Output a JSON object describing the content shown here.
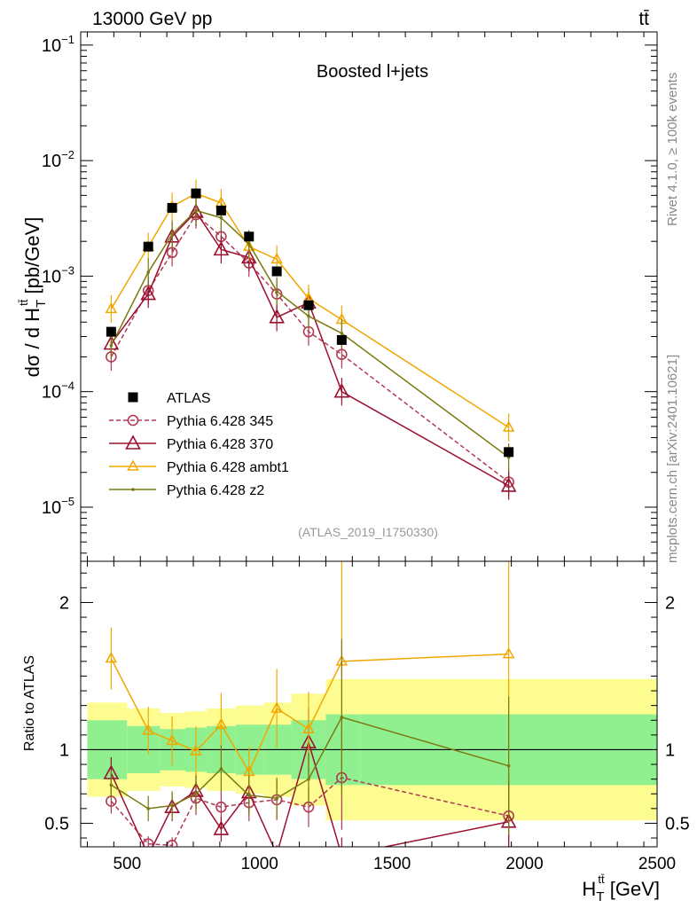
{
  "header": {
    "left": "13000 GeV pp",
    "right": "tt̄"
  },
  "side": {
    "top": "Rivet 4.1.0, ≥ 100k events",
    "bottom": "mcplots.cern.ch [arXiv:2401.10621]"
  },
  "colors": {
    "atlas": "#000000",
    "p345": "#b03a55",
    "p370": "#9b1030",
    "ambt1": "#f0a800",
    "z2": "#7a7a10",
    "band_inner": "#90f090",
    "band_outer": "#fcfc90"
  },
  "chart_data": {
    "type": "line",
    "title": "Boosted l+jets",
    "analysis": "(ATLAS_2019_I1750330)",
    "xlabel": "H_T^{tt̄} [GeV]",
    "ylabel": "dσ / d H_T^{tt̄} [pb/GeV]",
    "xlim": [
      325,
      2500
    ],
    "ylim": [
      3.4e-06,
      0.13
    ],
    "yscale": "log",
    "xticks": [
      500,
      1000,
      1500,
      2000,
      2500
    ],
    "yticks": [
      {
        "value": 0.1,
        "base": "10",
        "exp": "−1"
      },
      {
        "value": 0.01,
        "base": "10",
        "exp": "−2"
      },
      {
        "value": 0.001,
        "base": "10",
        "exp": "−3"
      },
      {
        "value": 0.0001,
        "base": "10",
        "exp": "−4"
      },
      {
        "value": 1e-05,
        "base": "10",
        "exp": "−5"
      }
    ],
    "x": [
      440,
      580,
      670,
      760,
      855,
      960,
      1065,
      1185,
      1310,
      1940
    ],
    "series": [
      {
        "name": "ATLAS",
        "key": "atlas",
        "marker": "square",
        "values": [
          0.00033,
          0.0018,
          0.0039,
          0.0052,
          0.0037,
          0.0022,
          0.0011,
          0.00056,
          0.00028,
          3e-05
        ]
      },
      {
        "name": "Pythia 6.428 345",
        "key": "p345",
        "marker": "circle",
        "dashed": true,
        "values": [
          0.0002,
          0.00075,
          0.0016,
          0.0034,
          0.0022,
          0.0013,
          0.0007,
          0.00033,
          0.00021,
          1.65e-05
        ]
      },
      {
        "name": "Pythia 6.428 370",
        "key": "p370",
        "marker": "triangle",
        "values": [
          0.00026,
          0.0007,
          0.0022,
          0.0036,
          0.0017,
          0.00145,
          0.00044,
          0.00059,
          0.0001,
          1.53e-05
        ]
      },
      {
        "name": "Pythia 6.428 ambt1",
        "key": "ambt1",
        "marker": "triangle-small",
        "values": [
          0.00052,
          0.0018,
          0.004,
          0.0052,
          0.0043,
          0.0018,
          0.0014,
          0.00064,
          0.00042,
          4.9e-05
        ]
      },
      {
        "name": "Pythia 6.428 z2",
        "key": "z2",
        "marker": "dot",
        "values": [
          0.00025,
          0.00108,
          0.0023,
          0.0037,
          0.0032,
          0.0019,
          0.00074,
          0.00045,
          0.00032,
          2.7e-05
        ]
      }
    ],
    "ratio": {
      "ylabel": "Ratio to ATLAS",
      "ylim": [
        0.34,
        2.28
      ],
      "yticks": [
        0.5,
        1,
        2
      ],
      "bins": [
        325,
        500,
        625,
        720,
        800,
        910,
        1015,
        1120,
        1250,
        1380,
        2500
      ],
      "inner_band": [
        0.2,
        0.16,
        0.14,
        0.15,
        0.16,
        0.17,
        0.17,
        0.2,
        0.24,
        0.24
      ],
      "outer_band": [
        0.32,
        0.28,
        0.25,
        0.26,
        0.28,
        0.3,
        0.32,
        0.38,
        0.48,
        0.48
      ],
      "series": [
        {
          "key": "p345",
          "values": [
            0.65,
            0.36,
            0.35,
            0.67,
            0.61,
            0.64,
            0.66,
            0.61,
            0.81,
            0.55
          ]
        },
        {
          "key": "p370",
          "values": [
            0.84,
            0.28,
            0.61,
            0.72,
            0.46,
            0.71,
            0.29,
            1.05,
            0.28,
            0.51
          ]
        },
        {
          "key": "ambt1",
          "values": [
            1.62,
            1.13,
            1.06,
            0.99,
            1.17,
            0.85,
            1.28,
            1.14,
            1.6,
            1.65
          ]
        },
        {
          "key": "z2",
          "values": [
            0.76,
            0.6,
            0.62,
            0.7,
            0.87,
            0.69,
            0.67,
            0.8,
            1.22,
            0.89
          ]
        }
      ]
    }
  }
}
